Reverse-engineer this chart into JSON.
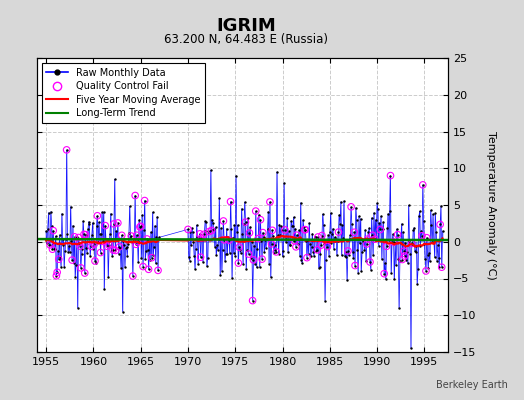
{
  "title": "IGRIM",
  "subtitle": "63.200 N, 64.483 E (Russia)",
  "ylabel": "Temperature Anomaly (°C)",
  "credit": "Berkeley Earth",
  "xlim": [
    1954.0,
    1997.5
  ],
  "ylim": [
    -15,
    25
  ],
  "yticks": [
    -15,
    -10,
    -5,
    0,
    5,
    10,
    15,
    20,
    25
  ],
  "xticks": [
    1955,
    1960,
    1965,
    1970,
    1975,
    1980,
    1985,
    1990,
    1995
  ],
  "fig_bg_color": "#d8d8d8",
  "plot_bg_color": "#ffffff",
  "grid_color": "#cccccc",
  "line_color": "blue",
  "qc_color": "magenta",
  "ma_color": "red",
  "trend_color": "green",
  "long_term_trend_slope": -0.003,
  "long_term_trend_intercept": 0.3,
  "years_start": 1955,
  "years_end": 1996
}
